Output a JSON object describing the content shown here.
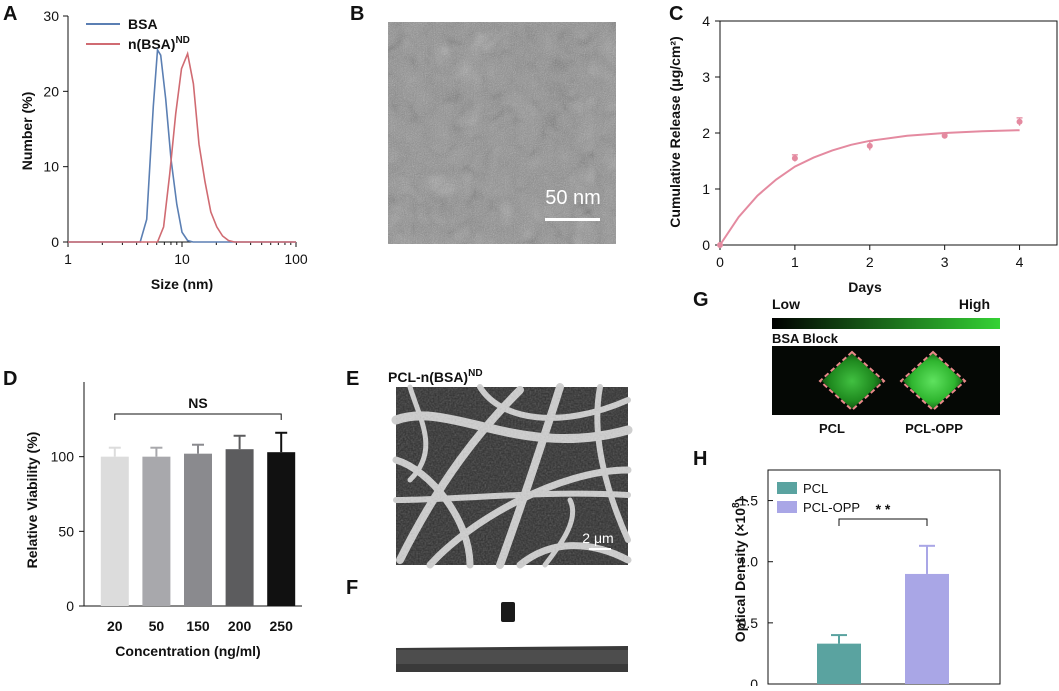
{
  "panels": {
    "A": {
      "label": "A"
    },
    "B": {
      "label": "B",
      "scale_bar": "50 nm"
    },
    "C": {
      "label": "C"
    },
    "D": {
      "label": "D"
    },
    "E": {
      "label": "E",
      "title": "PCL-n(BSA)",
      "title_sup": "ND",
      "scale_bar": "2 μm"
    },
    "F": {
      "label": "F"
    },
    "G": {
      "label": "G",
      "low": "Low",
      "high": "High",
      "block_label": "BSA Block",
      "sample_labels": [
        "PCL",
        "PCL-OPP"
      ]
    },
    "H": {
      "label": "H"
    }
  },
  "colors": {
    "bsa": "#5b7fb3",
    "nbsa": "#d06b72",
    "release": "#e48aa0",
    "pcl": "#5aa3a0",
    "pclopp": "#a9a6e6",
    "bars_d": [
      "#dcdcdc",
      "#a8a8ac",
      "#8a8a8e",
      "#5c5c5e",
      "#111111"
    ]
  },
  "chart_data": [
    {
      "id": "A",
      "type": "line",
      "xlabel": "Size (nm)",
      "ylabel": "Number (%)",
      "xscale": "log",
      "xlim": [
        1,
        100
      ],
      "ylim": [
        0,
        30
      ],
      "xticks": [
        1,
        10,
        100
      ],
      "yticks": [
        0,
        10,
        20,
        30
      ],
      "legend_position": "top-left",
      "series": [
        {
          "name": "BSA",
          "x": [
            1,
            3,
            4.3,
            4.9,
            5.6,
            6.1,
            6.5,
            7.2,
            8.0,
            9.0,
            10.0,
            11.2,
            12.5,
            14,
            100
          ],
          "y": [
            0,
            0,
            0,
            3,
            18,
            25.5,
            24.8,
            19,
            11,
            5,
            1.3,
            0.2,
            0,
            0,
            0
          ]
        },
        {
          "name": "n(BSA)",
          "name_sup": "ND",
          "x": [
            1,
            5,
            6.1,
            6.9,
            7.8,
            8.8,
            9.9,
            11.2,
            12.6,
            14.1,
            15.9,
            17.9,
            20.2,
            22.7,
            25.6,
            28.8,
            32.4,
            100
          ],
          "y": [
            0,
            0,
            0,
            2,
            9,
            17,
            23,
            25,
            21,
            13,
            8,
            4,
            2,
            0.8,
            0.2,
            0,
            0,
            0
          ]
        }
      ]
    },
    {
      "id": "C",
      "type": "scatter",
      "xlabel": "Days",
      "ylabel": "Cumulative Release (μg/cm²)",
      "xlim": [
        0,
        4.5
      ],
      "ylim": [
        0,
        4
      ],
      "xticks": [
        0,
        1,
        2,
        3,
        4
      ],
      "yticks": [
        0,
        1,
        2,
        3,
        4
      ],
      "points": {
        "x": [
          0,
          1,
          2,
          3,
          4
        ],
        "y": [
          0,
          1.55,
          1.77,
          1.95,
          2.2
        ],
        "err": [
          0,
          0.06,
          0.08,
          0.04,
          0.07
        ]
      },
      "fit": {
        "x": [
          0,
          0.25,
          0.5,
          0.75,
          1,
          1.25,
          1.5,
          1.75,
          2,
          2.5,
          3,
          3.5,
          4
        ],
        "y": [
          0,
          0.5,
          0.88,
          1.17,
          1.4,
          1.56,
          1.69,
          1.79,
          1.86,
          1.95,
          2.0,
          2.03,
          2.05
        ]
      }
    },
    {
      "id": "D",
      "type": "bar",
      "xlabel": "Concentration (ng/ml)",
      "ylabel": "Relative Viability (%)",
      "categories": [
        "20",
        "50",
        "150",
        "200",
        "250"
      ],
      "values": [
        100,
        100,
        102,
        105,
        103
      ],
      "errors": [
        6,
        6,
        6,
        9,
        13
      ],
      "ylim": [
        0,
        150
      ],
      "yticks": [
        0,
        50,
        100
      ],
      "annotation": "NS"
    },
    {
      "id": "H",
      "type": "bar",
      "ylabel": "Optical Density (×10",
      "ylabel_sup": "8",
      "ylabel_tail": ")",
      "categories": [
        "PCL",
        "PCL-OPP"
      ],
      "values": [
        0.33,
        0.9
      ],
      "errors": [
        0.07,
        0.23
      ],
      "ylim": [
        0,
        1.75
      ],
      "yticks": [
        0,
        0.5,
        1.0,
        1.5
      ],
      "ytick_labels": [
        "0",
        "0.5",
        "1.0",
        "1.5"
      ],
      "annotation": "* *",
      "legend_position": "top-left"
    }
  ]
}
